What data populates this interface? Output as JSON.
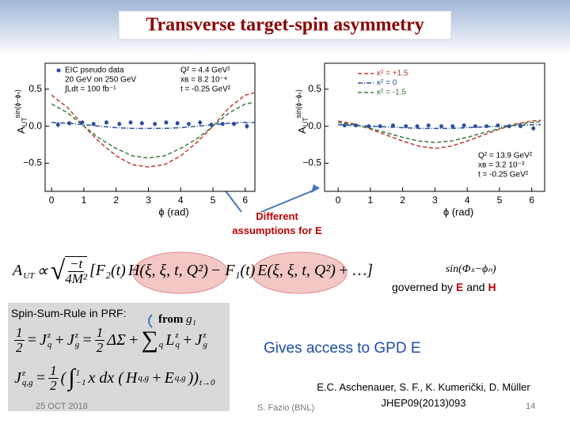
{
  "title": "Transverse target-spin asymmetry",
  "arrow_note": [
    "Different",
    "assumptions for E"
  ],
  "formula": [
    {
      "base": "A",
      "sub": "UT"
    },
    "∝",
    {
      "sqrt_frac": [
        "−t",
        "4M²"
      ]
    },
    "[F₂(t)",
    "H(ξ, ξ, t, Q²)",
    "− F₁(t)",
    "E(ξ, ξ, t, Q²)",
    "+ …]"
  ],
  "governed": {
    "term": "sin(Φₛ−ϕₙ)",
    "text": "governed by",
    "e": "E",
    "and": "and",
    "h": "H"
  },
  "spin_sum": {
    "title": "Spin-Sum-Rule in PRF:",
    "from": "from",
    "g": "g₁",
    "eq1": [
      {
        "frac": [
          "1",
          "2"
        ]
      },
      "=",
      {
        "base": "J",
        "sub": "q",
        "sup": "z"
      },
      "+",
      {
        "base": "J",
        "sub": "g",
        "sup": "z"
      },
      "=",
      {
        "frac": [
          "1",
          "2"
        ]
      },
      "ΔΣ",
      "+",
      {
        "base": "∑",
        "sub": "q"
      },
      {
        "base": "L",
        "sub": "q",
        "sup": "z"
      },
      "+",
      {
        "base": "J",
        "sub": "g",
        "sup": "z"
      }
    ],
    "eq2": [
      {
        "base": "J",
        "sub": "q,g",
        "sup": "z"
      },
      "=",
      {
        "frac": [
          "1",
          "2"
        ]
      },
      "(",
      {
        "base": "∫",
        "sub": "−1",
        "sup": "1"
      },
      "x dx (",
      {
        "base": "H",
        "sup": "q,g"
      },
      "+",
      {
        "base": "E",
        "sup": "q,g"
      },
      {
        "base": "))",
        "sub": "t→0"
      }
    ]
  },
  "access": "Gives access to GPD E",
  "reference": [
    "E.C. Aschenauer, S. F., K. Kumerički, D. Müller",
    "JHEP09(2013)093"
  ],
  "footer": {
    "date": "25 OCT 2018",
    "author": "S. Fazio (BNL)",
    "page": "14"
  },
  "chart_data": [
    {
      "type": "line",
      "xlabel": "ϕ (rad)",
      "ylabel": {
        "base": "A",
        "sub": "UT",
        "sup": "sin(ϕ−ϕₛ)"
      },
      "xlim": [
        -0.2,
        6.3
      ],
      "ylim": [
        -0.88,
        0.85
      ],
      "xticks": [
        0,
        1,
        2,
        3,
        4,
        5,
        6
      ],
      "yticks": [
        {
          "value": -0.5,
          "label": "−0.5"
        },
        {
          "value": 0,
          "label": "0.0"
        },
        {
          "value": 0.5,
          "label": "0.5"
        }
      ],
      "x": [
        0,
        0.5,
        1,
        1.5,
        2,
        2.5,
        3,
        3.5,
        4,
        4.5,
        5,
        5.5,
        6,
        6.28
      ],
      "series": [
        {
          "color": "#c0392b",
          "dash": "5,3",
          "values": [
            0.42,
            0.25,
            0.0,
            -0.22,
            -0.4,
            -0.52,
            -0.55,
            -0.52,
            -0.4,
            -0.22,
            0.0,
            0.25,
            0.42,
            0.45
          ]
        },
        {
          "color": "#3a7d3a",
          "dash": "5,3",
          "values": [
            0.3,
            0.18,
            0.0,
            -0.17,
            -0.3,
            -0.4,
            -0.43,
            -0.4,
            -0.3,
            -0.17,
            0.0,
            0.18,
            0.3,
            0.32
          ]
        },
        {
          "color": "#2b4f9e",
          "dash": "6,2,1,2",
          "values": [
            0.05,
            0.04,
            0.02,
            0.0,
            -0.02,
            -0.03,
            -0.03,
            -0.03,
            -0.02,
            0.0,
            0.02,
            0.04,
            0.05,
            0.05
          ]
        }
      ],
      "points": {
        "name": "EIC pseudo data",
        "color": "#2b4f9e",
        "x": [
          0.2,
          0.55,
          0.95,
          1.3,
          1.7,
          2.1,
          2.45,
          2.8,
          3.2,
          3.55,
          3.9,
          4.25,
          4.6,
          4.95,
          5.3,
          5.65,
          6.05
        ],
        "values": [
          0.02,
          0.04,
          0.05,
          0.03,
          0.05,
          0.03,
          0.05,
          0.04,
          0.03,
          0.05,
          0.04,
          0.03,
          0.05,
          0.02,
          0.03,
          0.03,
          0.0
        ],
        "errors": [
          0.04,
          0.03,
          0.03,
          0.03,
          0.03,
          0.03,
          0.03,
          0.03,
          0.03,
          0.03,
          0.03,
          0.03,
          0.03,
          0.03,
          0.03,
          0.03,
          0.04
        ]
      },
      "legend_lines": [
        "20 GeV on 250 GeV",
        "∫Ldt = 100 fb⁻¹"
      ],
      "annotations": [
        "Q² = 4.4 GeV²",
        "xʙ = 8.2 10⁻⁴",
        "t = -0.25 GeV²"
      ]
    },
    {
      "type": "line",
      "xlabel": "ϕ (rad)",
      "ylabel": {
        "base": "A",
        "sub": "UT",
        "sup": "sin(ϕ−ϕₛ)"
      },
      "xlim": [
        -0.42,
        6.4
      ],
      "ylim": [
        -0.88,
        0.85
      ],
      "xticks": [
        0,
        1,
        2,
        3,
        4,
        5,
        6
      ],
      "yticks": [
        {
          "value": -0.5,
          "label": "−0.5"
        },
        {
          "value": 0,
          "label": "0.0"
        },
        {
          "value": 0.5,
          "label": "0.5"
        }
      ],
      "x": [
        0,
        0.5,
        1,
        1.5,
        2,
        2.5,
        3,
        3.5,
        4,
        4.5,
        5,
        5.5,
        6,
        6.28
      ],
      "series": [
        {
          "name": "κ² = +1.5",
          "color": "#c0392b",
          "dash": "5,3",
          "values": [
            0.07,
            0.03,
            -0.04,
            -0.12,
            -0.2,
            -0.27,
            -0.3,
            -0.27,
            -0.2,
            -0.12,
            -0.04,
            0.03,
            0.07,
            0.08
          ]
        },
        {
          "name": "κ² = 0",
          "color": "#2b4f9e",
          "dash": "6,2,1,2",
          "values": [
            0.02,
            0.01,
            0.0,
            -0.01,
            -0.02,
            -0.03,
            -0.03,
            -0.03,
            -0.02,
            -0.01,
            0.0,
            0.01,
            0.02,
            0.02
          ]
        },
        {
          "name": "κ² = -1.5",
          "color": "#3a7d3a",
          "dash": "5,3",
          "values": [
            0.05,
            0.02,
            -0.03,
            -0.09,
            -0.15,
            -0.2,
            -0.22,
            -0.2,
            -0.15,
            -0.09,
            -0.03,
            0.02,
            0.05,
            0.06
          ]
        }
      ],
      "points": {
        "color": "#2b4f9e",
        "x": [
          0.2,
          0.55,
          0.95,
          1.3,
          1.7,
          2.1,
          2.45,
          2.8,
          3.2,
          3.55,
          3.9,
          4.25,
          4.6,
          4.95,
          5.3,
          5.65,
          6.05
        ],
        "values": [
          0.01,
          0.01,
          0.0,
          0.0,
          0.01,
          0.0,
          0.0,
          0.01,
          0.0,
          0.0,
          0.01,
          0.0,
          0.0,
          0.01,
          0.0,
          0.0,
          -0.03
        ],
        "errors": [
          0.02,
          0.02,
          0.02,
          0.02,
          0.02,
          0.02,
          0.02,
          0.02,
          0.02,
          0.02,
          0.02,
          0.02,
          0.02,
          0.02,
          0.02,
          0.02,
          0.03
        ]
      },
      "annotations": [
        "Q² = 13.9 GeV²",
        "xʙ = 3.2 10⁻³",
        "t = -0.25 GeV²"
      ]
    }
  ]
}
